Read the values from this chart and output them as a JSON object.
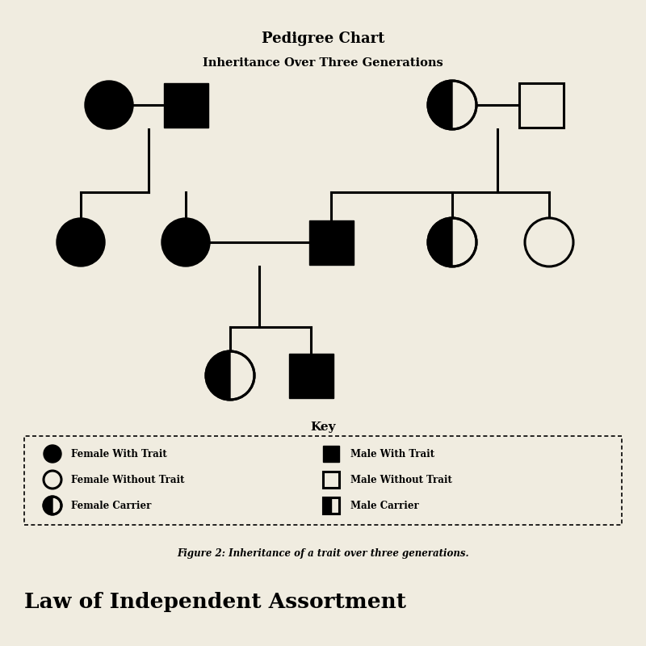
{
  "title_line1": "Pedigree Chart",
  "title_line2": "Inheritance Over Three Generations",
  "bg_color": "#f0ece0",
  "paper_color": "#f0ece0",
  "purple_band_color": "#4a1a4a",
  "figure_caption": "Figure 2: Inheritance of a trait over three generations.",
  "bottom_text": "Law of Independent Assortment",
  "key_title": "Key",
  "key_items_left": [
    "Female With Trait",
    "Female Without Trait",
    "Female Carrier"
  ],
  "key_items_right": [
    "Male With Trait",
    "Male Without Trait",
    "Male Carrier"
  ]
}
